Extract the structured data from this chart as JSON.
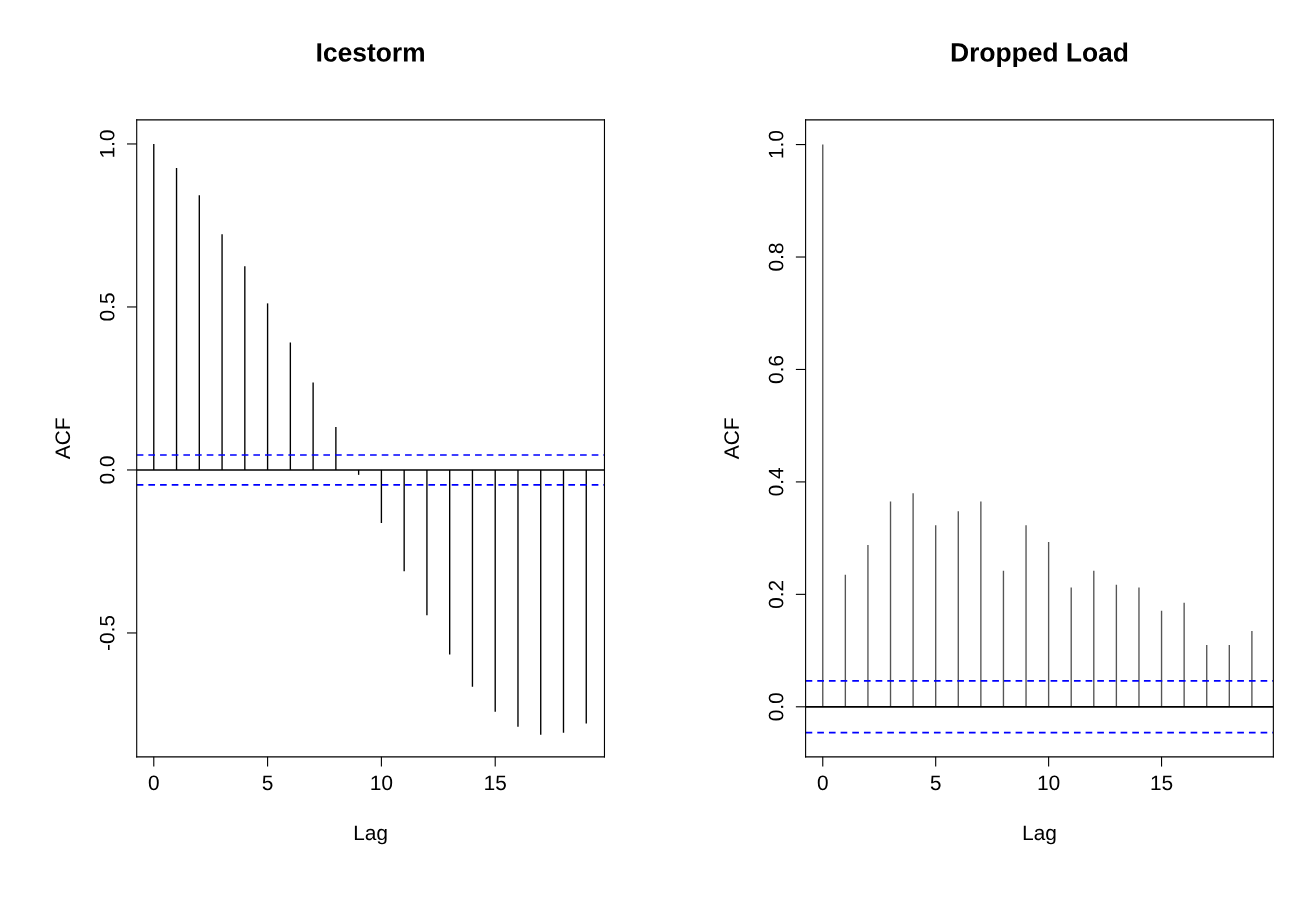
{
  "chart_data": [
    {
      "type": "bar",
      "title": "Icestorm",
      "xlabel": "Lag",
      "ylabel": "ACF",
      "x": [
        0,
        1,
        2,
        3,
        4,
        5,
        6,
        7,
        8,
        9,
        10,
        11,
        12,
        13,
        14,
        15,
        16,
        17,
        18,
        19
      ],
      "series": [
        {
          "color": "#000000",
          "values": [
            1.0,
            0.926,
            0.843,
            0.723,
            0.625,
            0.511,
            0.391,
            0.268,
            0.132,
            -0.015,
            -0.163,
            -0.311,
            -0.446,
            -0.566,
            -0.665,
            -0.742,
            -0.788,
            -0.812,
            -0.806,
            -0.778
          ]
        }
      ],
      "xlim": [
        -0.75,
        19.8
      ],
      "ylim": [
        -0.88,
        1.074
      ],
      "xticks": [
        0,
        5,
        10,
        15
      ],
      "yticks": [
        {
          "value": -0.5,
          "label": "-0.5"
        },
        {
          "value": 0,
          "label": "0.0"
        },
        {
          "value": 0.5,
          "label": "0.5"
        },
        {
          "value": 1,
          "label": "1.0"
        }
      ],
      "ref_lines": [
        {
          "axis": "y",
          "value": 0,
          "color": "#000000",
          "line_style": "solid"
        },
        {
          "axis": "y",
          "value": 0.046,
          "color": "#0000ff",
          "line_style": "dashed"
        },
        {
          "axis": "y",
          "value": -0.046,
          "color": "#0000ff",
          "line_style": "dashed"
        }
      ],
      "grid": false,
      "legend": false
    },
    {
      "type": "bar",
      "title": "Dropped Load",
      "xlabel": "Lag",
      "ylabel": "ACF",
      "x": [
        0,
        1,
        2,
        3,
        4,
        5,
        6,
        7,
        8,
        9,
        10,
        11,
        12,
        13,
        14,
        15,
        16,
        17,
        18,
        19
      ],
      "series": [
        {
          "color": "#555555",
          "values": [
            1.0,
            0.235,
            0.288,
            0.365,
            0.38,
            0.323,
            0.348,
            0.365,
            0.242,
            0.323,
            0.293,
            0.212,
            0.242,
            0.217,
            0.212,
            0.171,
            0.185,
            0.11,
            0.11,
            0.135
          ]
        }
      ],
      "xlim": [
        -0.76,
        19.95
      ],
      "ylim": [
        -0.089,
        1.044
      ],
      "xticks": [
        0,
        5,
        10,
        15
      ],
      "yticks": [
        {
          "value": 0,
          "label": "0.0"
        },
        {
          "value": 0.2,
          "label": "0.2"
        },
        {
          "value": 0.4,
          "label": "0.4"
        },
        {
          "value": 0.6,
          "label": "0.6"
        },
        {
          "value": 0.8,
          "label": "0.8"
        },
        {
          "value": 1,
          "label": "1.0"
        }
      ],
      "ref_lines": [
        {
          "axis": "y",
          "value": 0,
          "color": "#000000",
          "line_style": "solid"
        },
        {
          "axis": "y",
          "value": 0.046,
          "color": "#0000ff",
          "line_style": "dashed"
        },
        {
          "axis": "y",
          "value": -0.046,
          "color": "#0000ff",
          "line_style": "dashed"
        }
      ],
      "grid": false,
      "legend": false
    }
  ]
}
